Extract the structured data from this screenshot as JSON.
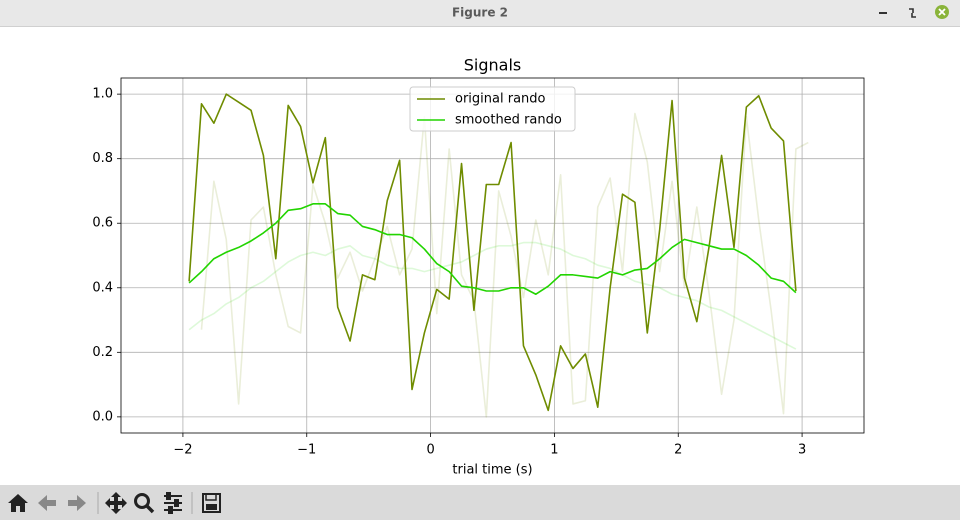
{
  "window": {
    "title": "Figure 2"
  },
  "chart_data": {
    "type": "line",
    "title": "Signals",
    "x_label": "trial time (s)",
    "xlim": [
      -2.5,
      3.5
    ],
    "ylim": [
      -0.05,
      1.05
    ],
    "xticks": [
      {
        "value": -2,
        "label": "−2"
      },
      {
        "value": -1,
        "label": "−1"
      },
      0,
      1,
      2,
      3
    ],
    "yticks": [
      {
        "value": 0,
        "label": "0.0"
      },
      0.2,
      0.4,
      0.6,
      0.8,
      {
        "value": 1,
        "label": "1.0"
      }
    ],
    "grid": true,
    "legend": "upper center",
    "series": [
      {
        "color": "#6f8c00",
        "opacity": 0.15,
        "x": [
          -1.85,
          -1.75,
          -1.65,
          -1.55,
          -1.45,
          -1.35,
          -1.25,
          -1.15,
          -1.05,
          -0.95,
          -0.85,
          -0.75,
          -0.65,
          -0.55,
          -0.45,
          -0.35,
          -0.25,
          -0.15,
          -0.05,
          0.05,
          0.15,
          0.25,
          0.35,
          0.45,
          0.55,
          0.65,
          0.75,
          0.85,
          0.95,
          1.05,
          1.15,
          1.25,
          1.35,
          1.45,
          1.55,
          1.65,
          1.75,
          1.85,
          1.95,
          2.05,
          2.15,
          2.25,
          2.35,
          2.45,
          2.55,
          2.65,
          2.75,
          2.85,
          2.95,
          3.05
        ],
        "values": [
          0.27,
          0.73,
          0.55,
          0.04,
          0.61,
          0.65,
          0.44,
          0.28,
          0.26,
          0.72,
          0.6,
          0.43,
          0.51,
          0.39,
          0.49,
          0.59,
          0.44,
          0.52,
          0.93,
          0.32,
          0.83,
          0.44,
          0.36,
          0.0,
          0.7,
          0.56,
          0.37,
          0.61,
          0.44,
          0.75,
          0.04,
          0.05,
          0.65,
          0.74,
          0.45,
          0.94,
          0.79,
          0.45,
          0.73,
          0.4,
          0.65,
          0.38,
          0.07,
          0.3,
          0.93,
          0.61,
          0.33,
          0.01,
          0.83,
          0.85
        ]
      },
      {
        "color": "#22d400",
        "opacity": 0.15,
        "x": [
          -1.95,
          -1.85,
          -1.75,
          -1.65,
          -1.55,
          -1.45,
          -1.35,
          -1.25,
          -1.15,
          -1.05,
          -0.95,
          -0.85,
          -0.75,
          -0.65,
          -0.55,
          -0.45,
          -0.35,
          -0.25,
          -0.15,
          -0.05,
          0.05,
          0.15,
          0.25,
          0.35,
          0.45,
          0.55,
          0.65,
          0.75,
          0.85,
          0.95,
          1.05,
          1.15,
          1.25,
          1.35,
          1.45,
          1.55,
          1.65,
          1.75,
          1.85,
          1.95,
          2.05,
          2.15,
          2.25,
          2.35,
          2.45,
          2.55,
          2.65,
          2.75,
          2.85,
          2.95
        ],
        "values": [
          0.27,
          0.3,
          0.32,
          0.35,
          0.37,
          0.4,
          0.42,
          0.45,
          0.48,
          0.5,
          0.51,
          0.5,
          0.52,
          0.53,
          0.5,
          0.49,
          0.47,
          0.46,
          0.46,
          0.45,
          0.46,
          0.47,
          0.48,
          0.5,
          0.52,
          0.53,
          0.53,
          0.54,
          0.54,
          0.53,
          0.52,
          0.5,
          0.49,
          0.47,
          0.46,
          0.44,
          0.42,
          0.41,
          0.4,
          0.38,
          0.37,
          0.36,
          0.34,
          0.33,
          0.31,
          0.29,
          0.27,
          0.25,
          0.23,
          0.21
        ]
      },
      {
        "name": "original rando",
        "color": "#6f8c00",
        "opacity": 1,
        "x": [
          -1.95,
          -1.85,
          -1.75,
          -1.65,
          -1.55,
          -1.45,
          -1.35,
          -1.25,
          -1.15,
          -1.05,
          -0.95,
          -0.85,
          -0.75,
          -0.65,
          -0.55,
          -0.45,
          -0.35,
          -0.25,
          -0.15,
          -0.05,
          0.05,
          0.15,
          0.25,
          0.35,
          0.45,
          0.55,
          0.65,
          0.75,
          0.85,
          0.95,
          1.05,
          1.15,
          1.25,
          1.35,
          1.45,
          1.55,
          1.65,
          1.75,
          1.85,
          1.95,
          2.05,
          2.15,
          2.25,
          2.35,
          2.45,
          2.55,
          2.65,
          2.75,
          2.85,
          2.95
        ],
        "values": [
          0.42,
          0.97,
          0.91,
          1.0,
          0.975,
          0.95,
          0.81,
          0.49,
          0.965,
          0.9,
          0.725,
          0.865,
          0.34,
          0.235,
          0.44,
          0.425,
          0.67,
          0.795,
          0.085,
          0.26,
          0.395,
          0.365,
          0.785,
          0.33,
          0.72,
          0.72,
          0.85,
          0.22,
          0.13,
          0.02,
          0.22,
          0.15,
          0.195,
          0.03,
          0.4,
          0.69,
          0.665,
          0.26,
          0.58,
          0.98,
          0.43,
          0.295,
          0.53,
          0.81,
          0.525,
          0.96,
          0.995,
          0.895,
          0.855,
          0.39
        ]
      },
      {
        "name": "smoothed rando",
        "color": "#22d400",
        "opacity": 1,
        "x": [
          -1.95,
          -1.85,
          -1.75,
          -1.65,
          -1.55,
          -1.45,
          -1.35,
          -1.25,
          -1.15,
          -1.05,
          -0.95,
          -0.85,
          -0.75,
          -0.65,
          -0.55,
          -0.45,
          -0.35,
          -0.25,
          -0.15,
          -0.05,
          0.05,
          0.15,
          0.25,
          0.35,
          0.45,
          0.55,
          0.65,
          0.75,
          0.85,
          0.95,
          1.05,
          1.15,
          1.25,
          1.35,
          1.45,
          1.55,
          1.65,
          1.75,
          1.85,
          1.95,
          2.05,
          2.15,
          2.25,
          2.35,
          2.45,
          2.55,
          2.65,
          2.75,
          2.85,
          2.95
        ],
        "values": [
          0.415,
          0.45,
          0.49,
          0.51,
          0.525,
          0.545,
          0.57,
          0.6,
          0.64,
          0.645,
          0.66,
          0.66,
          0.63,
          0.625,
          0.59,
          0.58,
          0.565,
          0.565,
          0.555,
          0.52,
          0.475,
          0.45,
          0.405,
          0.4,
          0.39,
          0.39,
          0.4,
          0.4,
          0.38,
          0.405,
          0.44,
          0.44,
          0.435,
          0.43,
          0.45,
          0.44,
          0.455,
          0.46,
          0.49,
          0.525,
          0.55,
          0.54,
          0.53,
          0.52,
          0.52,
          0.5,
          0.47,
          0.43,
          0.42,
          0.385
        ]
      }
    ]
  }
}
